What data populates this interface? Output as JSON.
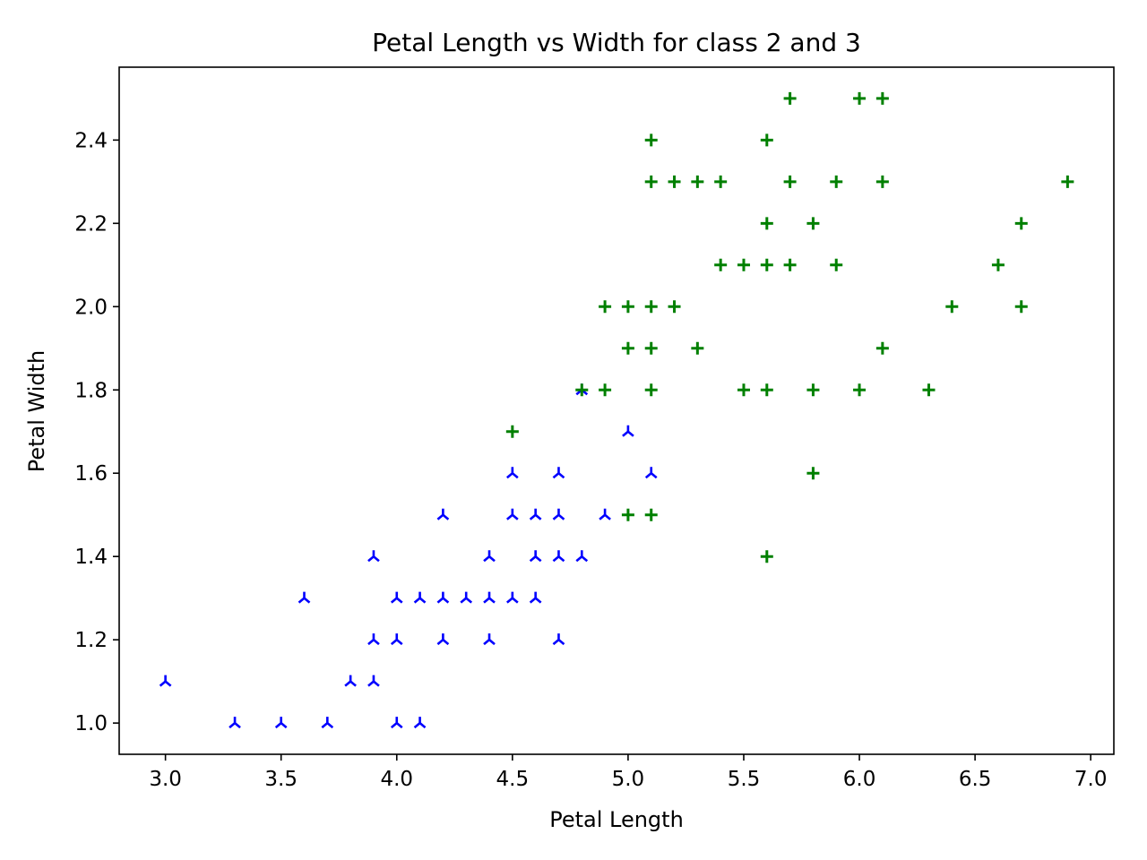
{
  "chart_data": {
    "type": "scatter",
    "title": "Petal Length vs Width for class 2 and 3",
    "xlabel": "Petal Length",
    "ylabel": "Petal Width",
    "xlim": [
      2.8,
      7.1
    ],
    "ylim": [
      0.925,
      2.575
    ],
    "xticks": [
      "3.0",
      "3.5",
      "4.0",
      "4.5",
      "5.0",
      "5.5",
      "6.0",
      "6.5",
      "7.0"
    ],
    "yticks": [
      "1.0",
      "1.2",
      "1.4",
      "1.6",
      "1.8",
      "2.0",
      "2.2",
      "2.4"
    ],
    "grid": false,
    "legend": "none",
    "series": [
      {
        "marker": "tri-down",
        "color": "#0000ff",
        "points": [
          [
            3.0,
            1.1
          ],
          [
            3.3,
            1.0
          ],
          [
            3.5,
            1.0
          ],
          [
            3.7,
            1.0
          ],
          [
            4.0,
            1.0
          ],
          [
            4.1,
            1.0
          ],
          [
            3.8,
            1.1
          ],
          [
            3.9,
            1.1
          ],
          [
            3.9,
            1.2
          ],
          [
            4.0,
            1.2
          ],
          [
            4.2,
            1.2
          ],
          [
            4.4,
            1.2
          ],
          [
            4.7,
            1.2
          ],
          [
            3.6,
            1.3
          ],
          [
            4.0,
            1.3
          ],
          [
            4.1,
            1.3
          ],
          [
            4.2,
            1.3
          ],
          [
            4.3,
            1.3
          ],
          [
            4.4,
            1.3
          ],
          [
            4.5,
            1.3
          ],
          [
            4.6,
            1.3
          ],
          [
            3.9,
            1.4
          ],
          [
            4.4,
            1.4
          ],
          [
            4.6,
            1.4
          ],
          [
            4.7,
            1.4
          ],
          [
            4.8,
            1.4
          ],
          [
            4.2,
            1.5
          ],
          [
            4.5,
            1.5
          ],
          [
            4.6,
            1.5
          ],
          [
            4.7,
            1.5
          ],
          [
            4.9,
            1.5
          ],
          [
            4.5,
            1.6
          ],
          [
            4.7,
            1.6
          ],
          [
            5.1,
            1.6
          ],
          [
            5.0,
            1.7
          ],
          [
            4.8,
            1.8
          ]
        ]
      },
      {
        "marker": "plus",
        "color": "#008000",
        "points": [
          [
            5.6,
            1.4
          ],
          [
            5.0,
            1.5
          ],
          [
            5.1,
            1.5
          ],
          [
            5.8,
            1.6
          ],
          [
            4.5,
            1.7
          ],
          [
            4.8,
            1.8
          ],
          [
            4.9,
            1.8
          ],
          [
            5.1,
            1.8
          ],
          [
            5.5,
            1.8
          ],
          [
            5.6,
            1.8
          ],
          [
            5.8,
            1.8
          ],
          [
            6.0,
            1.8
          ],
          [
            6.3,
            1.8
          ],
          [
            5.0,
            1.9
          ],
          [
            5.1,
            1.9
          ],
          [
            5.3,
            1.9
          ],
          [
            6.1,
            1.9
          ],
          [
            4.9,
            2.0
          ],
          [
            5.0,
            2.0
          ],
          [
            5.1,
            2.0
          ],
          [
            5.2,
            2.0
          ],
          [
            6.4,
            2.0
          ],
          [
            6.7,
            2.0
          ],
          [
            5.4,
            2.1
          ],
          [
            5.5,
            2.1
          ],
          [
            5.6,
            2.1
          ],
          [
            5.7,
            2.1
          ],
          [
            5.9,
            2.1
          ],
          [
            6.6,
            2.1
          ],
          [
            5.6,
            2.2
          ],
          [
            5.8,
            2.2
          ],
          [
            6.7,
            2.2
          ],
          [
            5.1,
            2.3
          ],
          [
            5.2,
            2.3
          ],
          [
            5.3,
            2.3
          ],
          [
            5.4,
            2.3
          ],
          [
            5.7,
            2.3
          ],
          [
            5.9,
            2.3
          ],
          [
            6.1,
            2.3
          ],
          [
            6.9,
            2.3
          ],
          [
            5.1,
            2.4
          ],
          [
            5.6,
            2.4
          ],
          [
            5.7,
            2.5
          ],
          [
            6.0,
            2.5
          ],
          [
            6.1,
            2.5
          ]
        ]
      }
    ]
  }
}
